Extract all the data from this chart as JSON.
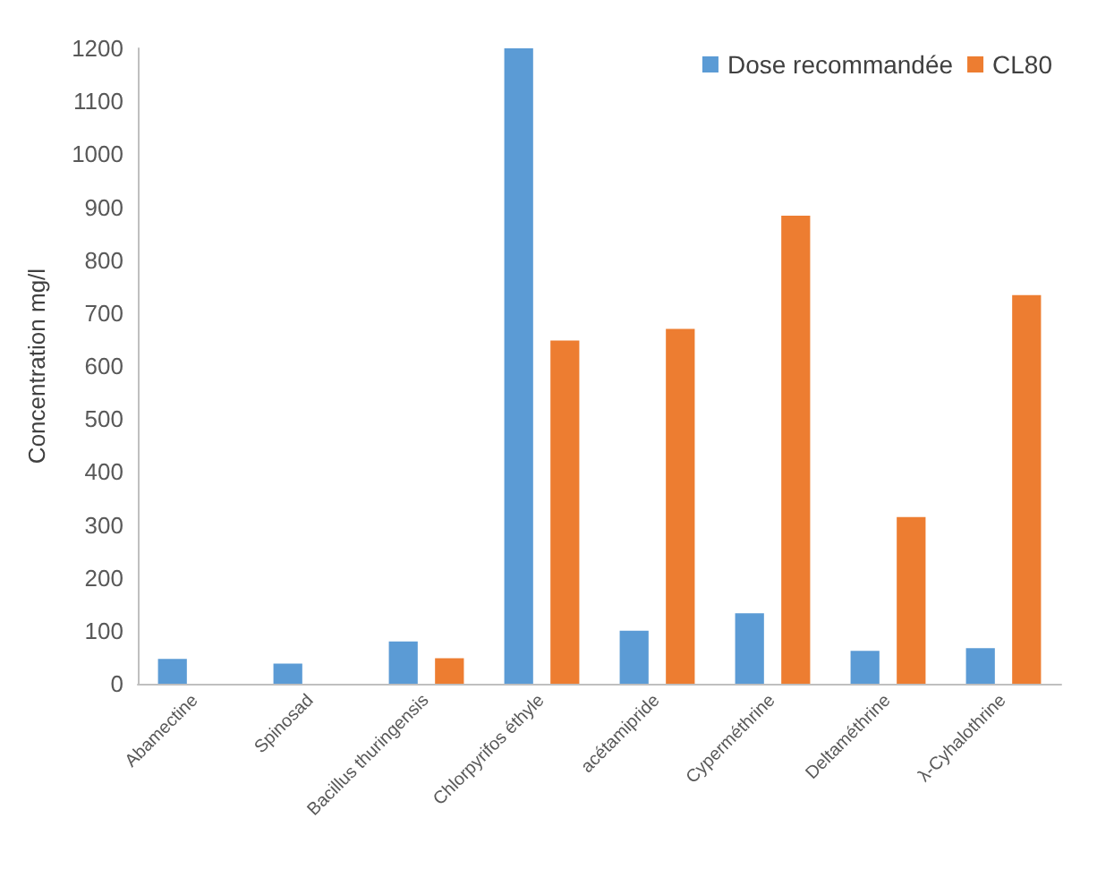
{
  "chart_data": {
    "type": "bar",
    "ylabel": "Concentration mg/l",
    "categories": [
      "Abamectine",
      "Spinosad",
      "Bacillus thuringensis",
      "Chlorpyrifos éthyle",
      "acétamipride",
      "Cyperméthrine",
      "Deltaméthrine",
      "λ-Cyhalothrine"
    ],
    "series": [
      {
        "name": "Dose recommandée",
        "color": "#5b9bd5",
        "values": [
          47,
          38,
          80,
          1200,
          100,
          133,
          62,
          67
        ]
      },
      {
        "name": "CL80",
        "color": "#ed7d31",
        "values": [
          null,
          null,
          48,
          648,
          670,
          884,
          315,
          734
        ]
      }
    ],
    "ylim": [
      0,
      1200
    ],
    "yticks": [
      0,
      100,
      200,
      300,
      400,
      500,
      600,
      700,
      800,
      900,
      1000,
      1100,
      1200
    ],
    "grid": false,
    "legend": "top right"
  }
}
